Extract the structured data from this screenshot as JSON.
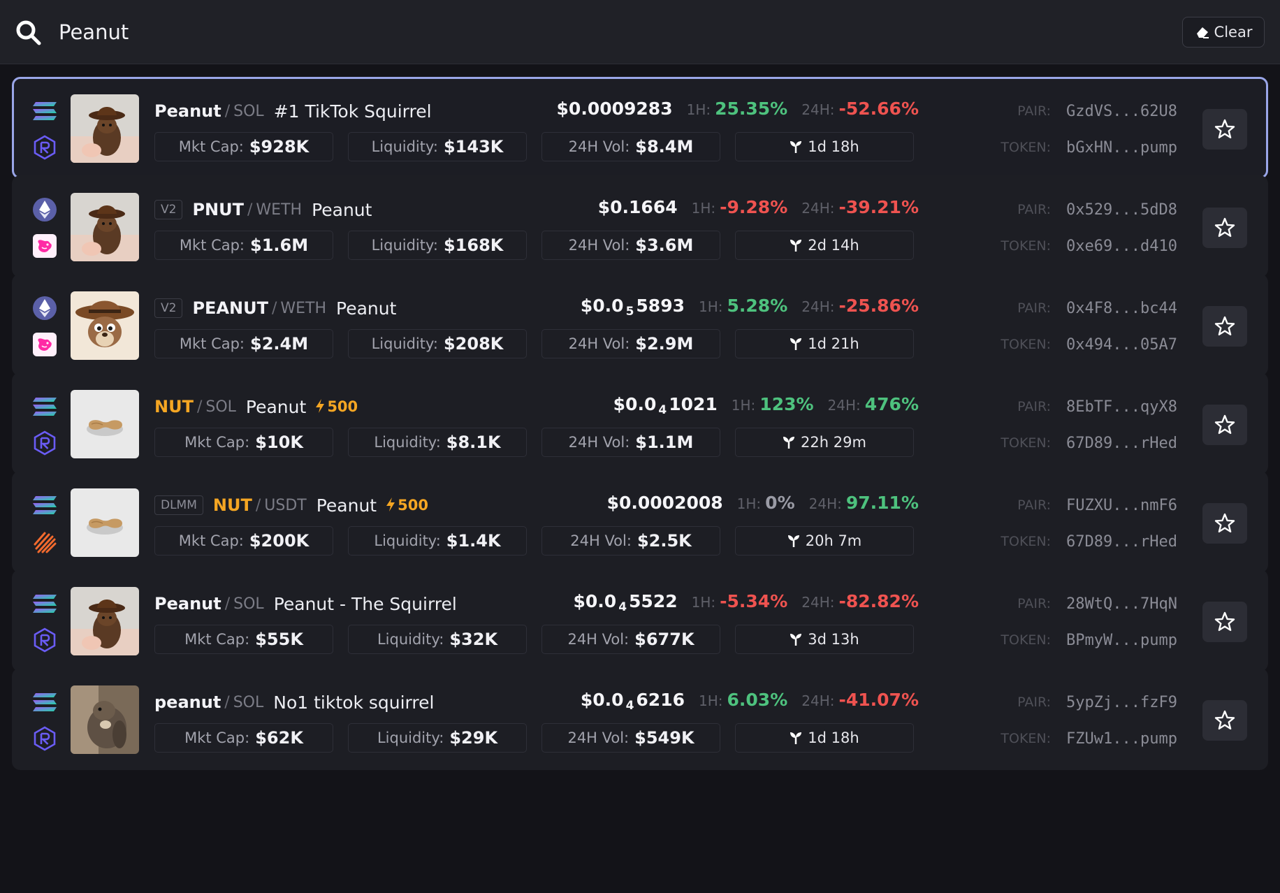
{
  "search": {
    "query": "Peanut"
  },
  "header": {
    "clear_label": "Clear"
  },
  "labels": {
    "h1": "1H:",
    "h24": "24H:",
    "mcap": "Mkt Cap:",
    "liq": "Liquidity:",
    "vol": "24H Vol:",
    "pair": "PAIR:",
    "token": "TOKEN:"
  },
  "colors": {
    "up": "#4ec27e",
    "down": "#ef5350",
    "hot": "#f5a623",
    "selected_border": "#9aa6e8"
  },
  "rows": [
    {
      "selected": true,
      "chain_icon": "solana-icon",
      "dex_icon": "raydium-icon",
      "image": "squirrel-cowboy-hat-photo",
      "tag": "",
      "symbol": "Peanut",
      "quote": "SOL",
      "name": "#1 TikTok Squirrel",
      "boost": "",
      "price_main": "$0.0009283",
      "price_sub": "",
      "price_tail": "",
      "change_1h": "25.35%",
      "change_1h_dir": "up",
      "change_24h": "-52.66%",
      "change_24h_dir": "down",
      "mcap": "$928K",
      "liquidity": "$143K",
      "volume": "$8.4M",
      "age": "1d 18h",
      "pair": "GzdVS...62U8",
      "token": "bGxHN...pump"
    },
    {
      "selected": false,
      "chain_icon": "ethereum-icon",
      "dex_icon": "uniswap-icon",
      "image": "squirrel-cowboy-hat-photo",
      "tag": "V2",
      "symbol": "PNUT",
      "quote": "WETH",
      "name": "Peanut",
      "boost": "",
      "price_main": "$0.1664",
      "price_sub": "",
      "price_tail": "",
      "change_1h": "-9.28%",
      "change_1h_dir": "down",
      "change_24h": "-39.21%",
      "change_24h_dir": "down",
      "mcap": "$1.6M",
      "liquidity": "$168K",
      "volume": "$3.6M",
      "age": "2d 14h",
      "pair": "0x529...5dD8",
      "token": "0xe69...d410"
    },
    {
      "selected": false,
      "chain_icon": "ethereum-icon",
      "dex_icon": "uniswap-icon",
      "image": "cartoon-squirrel-cowboy",
      "tag": "V2",
      "symbol": "PEANUT",
      "quote": "WETH",
      "name": "Peanut",
      "boost": "",
      "price_main": "$0.0",
      "price_sub": "5",
      "price_tail": "5893",
      "change_1h": "5.28%",
      "change_1h_dir": "up",
      "change_24h": "-25.86%",
      "change_24h_dir": "down",
      "mcap": "$2.4M",
      "liquidity": "$208K",
      "volume": "$2.9M",
      "age": "1d 21h",
      "pair": "0x4F8...bc44",
      "token": "0x494...05A7"
    },
    {
      "selected": false,
      "chain_icon": "solana-icon",
      "dex_icon": "raydium-icon",
      "image": "peanut-shell-photo",
      "tag": "",
      "symbol": "NUT",
      "symbol_hot": true,
      "quote": "SOL",
      "name": "Peanut",
      "boost": "500",
      "price_main": "$0.0",
      "price_sub": "4",
      "price_tail": "1021",
      "change_1h": "123%",
      "change_1h_dir": "up",
      "change_24h": "476%",
      "change_24h_dir": "up",
      "mcap": "$10K",
      "liquidity": "$8.1K",
      "volume": "$1.1M",
      "age": "22h 29m",
      "pair": "8EbTF...qyX8",
      "token": "67D89...rHed"
    },
    {
      "selected": false,
      "chain_icon": "solana-icon",
      "dex_icon": "meteora-icon",
      "image": "peanut-shell-photo",
      "tag": "DLMM",
      "symbol": "NUT",
      "symbol_hot": true,
      "quote": "USDT",
      "name": "Peanut",
      "boost": "500",
      "price_main": "$0.0002008",
      "price_sub": "",
      "price_tail": "",
      "change_1h": "0%",
      "change_1h_dir": "flat",
      "change_24h": "97.11%",
      "change_24h_dir": "up",
      "mcap": "$200K",
      "liquidity": "$1.4K",
      "volume": "$2.5K",
      "age": "20h 7m",
      "pair": "FUZXU...nmF6",
      "token": "67D89...rHed"
    },
    {
      "selected": false,
      "chain_icon": "solana-icon",
      "dex_icon": "raydium-icon",
      "image": "squirrel-cowboy-hat-photo",
      "tag": "",
      "symbol": "Peanut",
      "quote": "SOL",
      "name": "Peanut - The Squirrel",
      "boost": "",
      "price_main": "$0.0",
      "price_sub": "4",
      "price_tail": "5522",
      "change_1h": "-5.34%",
      "change_1h_dir": "down",
      "change_24h": "-82.82%",
      "change_24h_dir": "down",
      "mcap": "$55K",
      "liquidity": "$32K",
      "volume": "$677K",
      "age": "3d 13h",
      "pair": "28WtQ...7HqN",
      "token": "BPmyW...pump"
    },
    {
      "selected": false,
      "chain_icon": "solana-icon",
      "dex_icon": "raydium-icon",
      "image": "squirrel-eating-photo",
      "tag": "",
      "symbol": "peanut",
      "quote": "SOL",
      "name": "No1 tiktok squirrel",
      "boost": "",
      "price_main": "$0.0",
      "price_sub": "4",
      "price_tail": "6216",
      "change_1h": "6.03%",
      "change_1h_dir": "up",
      "change_24h": "-41.07%",
      "change_24h_dir": "down",
      "mcap": "$62K",
      "liquidity": "$29K",
      "volume": "$549K",
      "age": "1d 18h",
      "pair": "5ypZj...fzF9",
      "token": "FZUw1...pump"
    }
  ]
}
